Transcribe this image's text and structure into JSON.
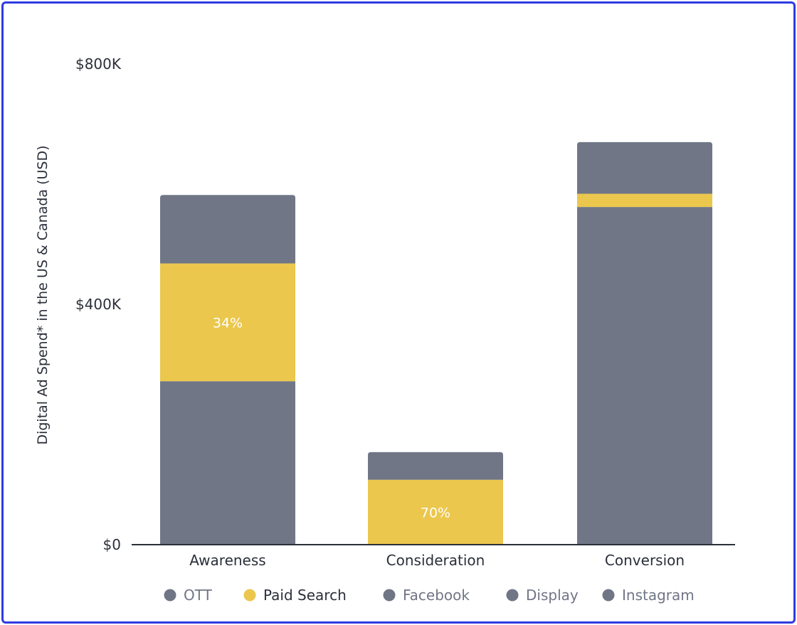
{
  "chart_data": {
    "type": "bar",
    "stacked": true,
    "title": "",
    "xlabel": "",
    "ylabel": "Digital Ad Spend* in the US & Canada (USD)",
    "ylim": [
      0,
      800000
    ],
    "yticks": [
      {
        "value": 0,
        "label": "$0"
      },
      {
        "value": 400000,
        "label": "$400K"
      },
      {
        "value": 800000,
        "label": "$800K"
      }
    ],
    "categories": [
      "Awareness",
      "Consideration",
      "Conversion"
    ],
    "segments": [
      {
        "category": "Awareness",
        "parts": [
          {
            "value": 272000,
            "color": "#707686"
          },
          {
            "value": 196000,
            "color": "#ebc74d",
            "label": "34%"
          },
          {
            "value": 114000,
            "color": "#707686"
          }
        ]
      },
      {
        "category": "Consideration",
        "parts": [
          {
            "value": 108000,
            "color": "#ebc74d",
            "label": "70%"
          },
          {
            "value": 46000,
            "color": "#707686"
          }
        ]
      },
      {
        "category": "Conversion",
        "parts": [
          {
            "value": 562000,
            "color": "#707686"
          },
          {
            "value": 22000,
            "color": "#ebc74d"
          },
          {
            "value": 86000,
            "color": "#707686"
          }
        ]
      }
    ],
    "legend": [
      {
        "name": "OTT",
        "color": "#707686",
        "active": false
      },
      {
        "name": "Paid Search",
        "color": "#ebc74d",
        "active": true
      },
      {
        "name": "Facebook",
        "color": "#707686",
        "active": false
      },
      {
        "name": "Display",
        "color": "#707686",
        "active": false
      },
      {
        "name": "Instagram",
        "color": "#707686",
        "active": false
      }
    ],
    "legend_position": "bottom",
    "grid": false
  }
}
